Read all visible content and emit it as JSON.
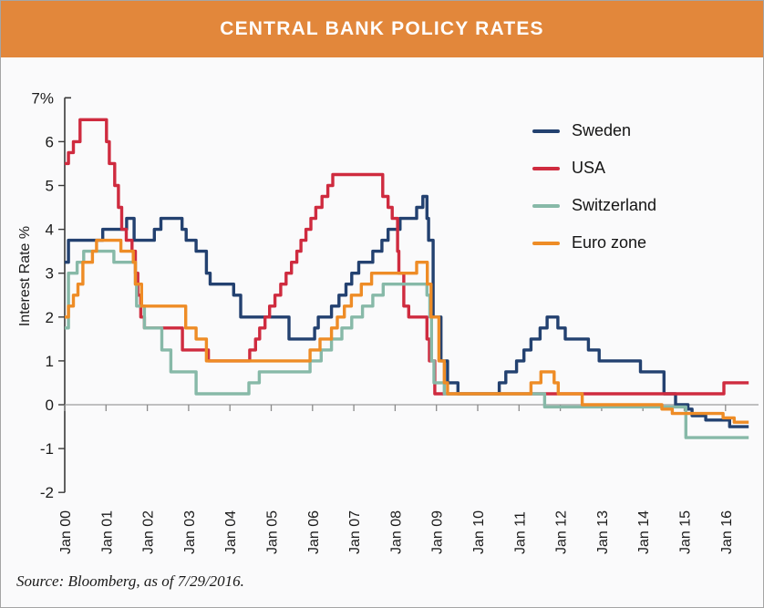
{
  "header": {
    "title": "CENTRAL BANK POLICY RATES"
  },
  "footer": {
    "source": "Source: Bloomberg, as of 7/29/2016."
  },
  "colors": {
    "banner": "#E2873B",
    "background": "#FAFAFB",
    "axis": "#3A3A3A",
    "zero_line": "#9C9C9C",
    "tick": "#8A8A8A",
    "text": "#1B1B1B"
  },
  "chart_data": {
    "type": "line",
    "style": "step",
    "title": "CENTRAL BANK POLICY RATES",
    "xlabel": "",
    "ylabel": "Interest Rate %",
    "x_unit": "decimal_year",
    "xlim": [
      2000,
      2016.75
    ],
    "ylim": [
      -2,
      7
    ],
    "grid": "zero-line-only",
    "legend_position": "upper-right",
    "y_ticks": [
      {
        "v": 7,
        "label": "7%"
      },
      {
        "v": 6,
        "label": "6"
      },
      {
        "v": 5,
        "label": "5"
      },
      {
        "v": 4,
        "label": "4"
      },
      {
        "v": 3,
        "label": "3"
      },
      {
        "v": 2,
        "label": "2"
      },
      {
        "v": 1,
        "label": "1"
      },
      {
        "v": 0,
        "label": "0"
      },
      {
        "v": -1,
        "label": "-1"
      },
      {
        "v": -2,
        "label": "-2"
      }
    ],
    "x_ticks": [
      {
        "v": 2000,
        "label": "Jan 00"
      },
      {
        "v": 2001,
        "label": "Jan 01"
      },
      {
        "v": 2002,
        "label": "Jan 02"
      },
      {
        "v": 2003,
        "label": "Jan 03"
      },
      {
        "v": 2004,
        "label": "Jan 04"
      },
      {
        "v": 2005,
        "label": "Jan 05"
      },
      {
        "v": 2006,
        "label": "Jan 06"
      },
      {
        "v": 2007,
        "label": "Jan 07"
      },
      {
        "v": 2008,
        "label": "Jan 08"
      },
      {
        "v": 2009,
        "label": "Jan 09"
      },
      {
        "v": 2010,
        "label": "Jan 10"
      },
      {
        "v": 2011,
        "label": "Jan 11"
      },
      {
        "v": 2012,
        "label": "Jan 12"
      },
      {
        "v": 2013,
        "label": "Jan 13"
      },
      {
        "v": 2014,
        "label": "Jan 14"
      },
      {
        "v": 2015,
        "label": "Jan 15"
      },
      {
        "v": 2016,
        "label": "Jan 16"
      }
    ],
    "series": [
      {
        "name": "Sweden",
        "color": "#234170",
        "step_points": [
          [
            2000.0,
            3.25
          ],
          [
            2000.09,
            3.75
          ],
          [
            2000.92,
            4.0
          ],
          [
            2001.5,
            4.25
          ],
          [
            2001.68,
            3.75
          ],
          [
            2002.17,
            4.0
          ],
          [
            2002.33,
            4.25
          ],
          [
            2002.84,
            4.0
          ],
          [
            2002.94,
            3.75
          ],
          [
            2003.18,
            3.5
          ],
          [
            2003.43,
            3.0
          ],
          [
            2003.52,
            2.75
          ],
          [
            2004.09,
            2.5
          ],
          [
            2004.26,
            2.0
          ],
          [
            2005.43,
            1.5
          ],
          [
            2006.05,
            1.75
          ],
          [
            2006.14,
            2.0
          ],
          [
            2006.46,
            2.25
          ],
          [
            2006.64,
            2.5
          ],
          [
            2006.81,
            2.75
          ],
          [
            2006.95,
            3.0
          ],
          [
            2007.12,
            3.25
          ],
          [
            2007.46,
            3.5
          ],
          [
            2007.68,
            3.75
          ],
          [
            2007.83,
            4.0
          ],
          [
            2008.12,
            4.25
          ],
          [
            2008.52,
            4.5
          ],
          [
            2008.67,
            4.75
          ],
          [
            2008.77,
            4.25
          ],
          [
            2008.81,
            3.75
          ],
          [
            2008.92,
            2.0
          ],
          [
            2009.11,
            1.0
          ],
          [
            2009.27,
            0.5
          ],
          [
            2009.52,
            0.25
          ],
          [
            2010.52,
            0.5
          ],
          [
            2010.68,
            0.75
          ],
          [
            2010.94,
            1.0
          ],
          [
            2011.12,
            1.25
          ],
          [
            2011.29,
            1.5
          ],
          [
            2011.51,
            1.75
          ],
          [
            2011.68,
            2.0
          ],
          [
            2011.94,
            1.75
          ],
          [
            2012.12,
            1.5
          ],
          [
            2012.68,
            1.25
          ],
          [
            2012.94,
            1.0
          ],
          [
            2013.94,
            0.75
          ],
          [
            2014.51,
            0.25
          ],
          [
            2014.79,
            0.0
          ],
          [
            2015.09,
            -0.1
          ],
          [
            2015.19,
            -0.25
          ],
          [
            2015.52,
            -0.35
          ],
          [
            2016.1,
            -0.5
          ],
          [
            2016.56,
            -0.5
          ]
        ]
      },
      {
        "name": "USA",
        "color": "#CF2B3F",
        "step_points": [
          [
            2000.0,
            5.5
          ],
          [
            2000.09,
            5.75
          ],
          [
            2000.21,
            6.0
          ],
          [
            2000.37,
            6.5
          ],
          [
            2001.01,
            6.0
          ],
          [
            2001.08,
            5.5
          ],
          [
            2001.21,
            5.0
          ],
          [
            2001.3,
            4.5
          ],
          [
            2001.38,
            4.0
          ],
          [
            2001.49,
            3.75
          ],
          [
            2001.63,
            3.5
          ],
          [
            2001.71,
            3.0
          ],
          [
            2001.77,
            2.5
          ],
          [
            2001.84,
            2.0
          ],
          [
            2001.93,
            1.75
          ],
          [
            2002.85,
            1.25
          ],
          [
            2003.48,
            1.0
          ],
          [
            2004.48,
            1.25
          ],
          [
            2004.62,
            1.5
          ],
          [
            2004.72,
            1.75
          ],
          [
            2004.85,
            2.0
          ],
          [
            2004.96,
            2.25
          ],
          [
            2005.09,
            2.5
          ],
          [
            2005.23,
            2.75
          ],
          [
            2005.36,
            3.0
          ],
          [
            2005.49,
            3.25
          ],
          [
            2005.62,
            3.5
          ],
          [
            2005.72,
            3.75
          ],
          [
            2005.84,
            4.0
          ],
          [
            2005.96,
            4.25
          ],
          [
            2006.08,
            4.5
          ],
          [
            2006.23,
            4.75
          ],
          [
            2006.37,
            5.0
          ],
          [
            2006.49,
            5.25
          ],
          [
            2007.7,
            4.75
          ],
          [
            2007.83,
            4.5
          ],
          [
            2007.93,
            4.25
          ],
          [
            2008.06,
            3.5
          ],
          [
            2008.09,
            3.0
          ],
          [
            2008.21,
            2.25
          ],
          [
            2008.33,
            2.0
          ],
          [
            2008.77,
            1.5
          ],
          [
            2008.83,
            1.0
          ],
          [
            2008.96,
            0.25
          ],
          [
            2015.96,
            0.5
          ],
          [
            2016.56,
            0.5
          ]
        ]
      },
      {
        "name": "Switzerland",
        "color": "#87B9A8",
        "step_points": [
          [
            2000.0,
            1.75
          ],
          [
            2000.09,
            3.0
          ],
          [
            2000.3,
            3.25
          ],
          [
            2000.46,
            3.5
          ],
          [
            2001.19,
            3.25
          ],
          [
            2001.71,
            2.75
          ],
          [
            2001.74,
            2.25
          ],
          [
            2001.93,
            1.75
          ],
          [
            2002.35,
            1.25
          ],
          [
            2002.57,
            0.75
          ],
          [
            2003.18,
            0.25
          ],
          [
            2004.46,
            0.5
          ],
          [
            2004.71,
            0.75
          ],
          [
            2005.94,
            1.0
          ],
          [
            2006.21,
            1.25
          ],
          [
            2006.46,
            1.5
          ],
          [
            2006.71,
            1.75
          ],
          [
            2006.95,
            2.0
          ],
          [
            2007.21,
            2.25
          ],
          [
            2007.46,
            2.5
          ],
          [
            2007.71,
            2.75
          ],
          [
            2008.77,
            2.5
          ],
          [
            2008.84,
            2.0
          ],
          [
            2008.88,
            1.0
          ],
          [
            2008.94,
            0.5
          ],
          [
            2009.19,
            0.25
          ],
          [
            2011.62,
            -0.05
          ],
          [
            2015.04,
            -0.75
          ],
          [
            2016.56,
            -0.75
          ]
        ]
      },
      {
        "name": "Euro zone",
        "color": "#EE8C26",
        "step_points": [
          [
            2000.0,
            2.0
          ],
          [
            2000.09,
            2.25
          ],
          [
            2000.21,
            2.5
          ],
          [
            2000.32,
            2.75
          ],
          [
            2000.44,
            3.25
          ],
          [
            2000.67,
            3.5
          ],
          [
            2000.77,
            3.75
          ],
          [
            2001.36,
            3.5
          ],
          [
            2001.66,
            3.25
          ],
          [
            2001.71,
            2.75
          ],
          [
            2001.86,
            2.25
          ],
          [
            2002.93,
            1.75
          ],
          [
            2003.18,
            1.5
          ],
          [
            2003.43,
            1.0
          ],
          [
            2005.94,
            1.25
          ],
          [
            2006.18,
            1.5
          ],
          [
            2006.46,
            1.75
          ],
          [
            2006.6,
            2.0
          ],
          [
            2006.77,
            2.25
          ],
          [
            2006.94,
            2.5
          ],
          [
            2007.18,
            2.75
          ],
          [
            2007.43,
            3.0
          ],
          [
            2008.52,
            3.25
          ],
          [
            2008.78,
            2.75
          ],
          [
            2008.87,
            2.0
          ],
          [
            2009.06,
            1.0
          ],
          [
            2009.19,
            0.5
          ],
          [
            2009.27,
            0.25
          ],
          [
            2011.29,
            0.5
          ],
          [
            2011.53,
            0.75
          ],
          [
            2011.85,
            0.5
          ],
          [
            2011.95,
            0.25
          ],
          [
            2012.53,
            0.0
          ],
          [
            2014.46,
            -0.1
          ],
          [
            2014.71,
            -0.2
          ],
          [
            2015.94,
            -0.3
          ],
          [
            2016.21,
            -0.4
          ],
          [
            2016.56,
            -0.4
          ]
        ]
      }
    ]
  }
}
